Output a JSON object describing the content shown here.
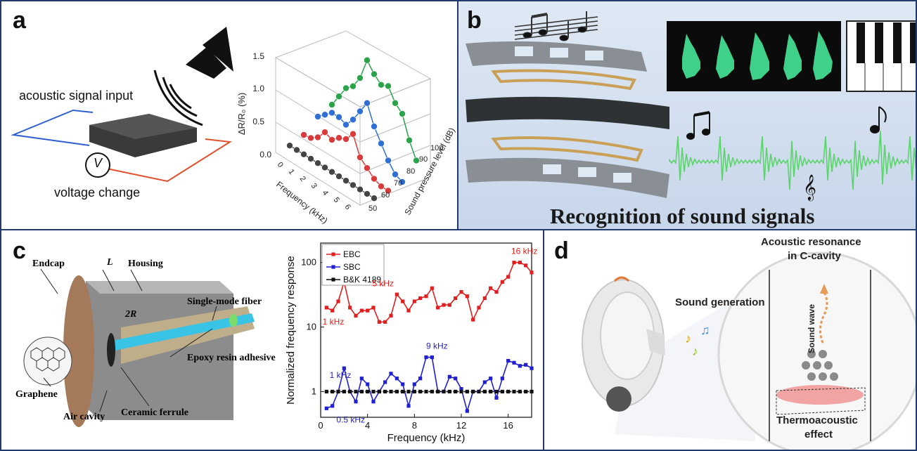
{
  "panels": {
    "a": {
      "label": "a",
      "acoustic_input": "acoustic signal input",
      "voltage_change": "voltage change",
      "meter_symbol": "V",
      "chart_ylabel": "ΔR/R₀ (%)",
      "chart_xlabel": "Frequency (kHz)",
      "chart_zlabel": "Sound pressure level (dB)",
      "y_ticks": [
        "0.0",
        "0.5",
        "1.0",
        "1.5"
      ],
      "x_ticks": [
        "0",
        "1",
        "2",
        "3",
        "4",
        "5",
        "6"
      ],
      "z_ticks": [
        "50",
        "60",
        "70",
        "80",
        "90",
        "100"
      ]
    },
    "b": {
      "label": "b",
      "caption": "Recognition of sound signals"
    },
    "c": {
      "label": "c",
      "endcap": "Endcap",
      "housing": "Housing",
      "length": "L",
      "radius": "2R",
      "fiber": "Single-mode fiber",
      "epoxy": "Epoxy resin adhesive",
      "graphene": "Graphene",
      "air_cavity": "Air cavity",
      "ferrule": "Ceramic ferrule"
    },
    "d": {
      "label": "d",
      "title_line1": "Acoustic resonance",
      "title_line2": "in C-cavity",
      "sound_generation": "Sound generation",
      "sound_wave": "Sound wave",
      "effect_line1": "Thermoacoustic",
      "effect_line2": "effect"
    }
  },
  "chart_data": [
    {
      "type": "line",
      "panel": "a",
      "xlabel": "Frequency (kHz)",
      "ylabel": "ΔR/R₀ (%)",
      "zlabel": "Sound pressure level (dB)",
      "ylim": [
        0,
        1.5
      ],
      "xlim": [
        0,
        6
      ],
      "zlim": [
        50,
        100
      ],
      "colors": [
        "#444444",
        "#d93a3a",
        "#2f6fd1",
        "#2aa34a"
      ],
      "series": [
        {
          "color": "#444444",
          "spl": 60,
          "x": [
            0,
            0.5,
            1,
            1.5,
            2,
            2.5,
            3,
            3.5,
            4,
            4.5,
            5,
            5.5,
            6
          ],
          "y": [
            0.02,
            0.02,
            0.02,
            0.02,
            0.02,
            0.02,
            0.02,
            0.02,
            0.02,
            0.02,
            0.02,
            0.02,
            0.02
          ]
        },
        {
          "color": "#d93a3a",
          "spl": 70,
          "x": [
            0,
            0.5,
            1,
            1.5,
            2,
            2.5,
            3,
            3.5,
            4,
            4.5,
            5,
            5.5,
            6
          ],
          "y": [
            0.1,
            0.12,
            0.2,
            0.35,
            0.3,
            0.4,
            0.45,
            0.6,
            0.3,
            0.2,
            0.1,
            0.05,
            0.05
          ]
        },
        {
          "color": "#2f6fd1",
          "spl": 80,
          "x": [
            0,
            0.5,
            1,
            1.5,
            2,
            2.5,
            3,
            3.5,
            4,
            4.5,
            5,
            5.5,
            6
          ],
          "y": [
            0.3,
            0.4,
            0.5,
            0.5,
            0.45,
            0.6,
            0.8,
            1.0,
            0.7,
            0.5,
            0.3,
            0.15,
            0.1
          ]
        },
        {
          "color": "#2aa34a",
          "spl": 90,
          "x": [
            0,
            0.5,
            1,
            1.5,
            2,
            2.5,
            3,
            3.5,
            4,
            4.5,
            5,
            5.5,
            6
          ],
          "y": [
            0.4,
            0.6,
            0.8,
            0.9,
            1.1,
            1.45,
            1.3,
            1.2,
            1.25,
            1.05,
            0.95,
            0.6,
            0.35
          ]
        }
      ]
    },
    {
      "type": "line",
      "panel": "c",
      "xlabel": "Frequency (kHz)",
      "ylabel": "Normalized frequency response",
      "xlim": [
        0,
        18
      ],
      "ylim": [
        0.4,
        200
      ],
      "yscale": "log",
      "x_ticks": [
        0,
        4,
        8,
        12,
        16
      ],
      "y_ticks": [
        1,
        10,
        100
      ],
      "legend": "top-left",
      "series": [
        {
          "name": "EBC",
          "color": "#e02020",
          "marker": "square",
          "x": [
            0.5,
            1,
            1.5,
            2,
            2.5,
            3,
            3.5,
            4,
            4.5,
            5,
            5.5,
            6,
            6.5,
            7,
            7.5,
            8,
            8.5,
            9,
            9.5,
            10,
            10.5,
            11,
            11.5,
            12,
            12.5,
            13,
            13.5,
            14,
            14.5,
            15,
            15.5,
            16,
            16.5,
            17,
            17.5,
            18
          ],
          "y": [
            20,
            18,
            25,
            50,
            20,
            15,
            18,
            18,
            20,
            12,
            12,
            15,
            32,
            25,
            18,
            25,
            28,
            30,
            40,
            20,
            22,
            22,
            28,
            35,
            30,
            13,
            20,
            28,
            40,
            35,
            50,
            60,
            100,
            100,
            90,
            70
          ]
        },
        {
          "name": "SBC",
          "color": "#2020d0",
          "marker": "square",
          "x": [
            0.5,
            1,
            1.5,
            2,
            2.5,
            3,
            3.5,
            4,
            4.5,
            5,
            5.5,
            6,
            6.5,
            7,
            7.5,
            8,
            8.5,
            9,
            9.5,
            10,
            10.5,
            11,
            11.5,
            12,
            12.5,
            13,
            13.5,
            14,
            14.5,
            15,
            15.5,
            16,
            16.5,
            17,
            17.5,
            18
          ],
          "y": [
            0.55,
            0.6,
            1.0,
            2.3,
            1.0,
            0.7,
            1.6,
            1.3,
            0.7,
            1.0,
            1.4,
            1.9,
            1.6,
            1.3,
            0.6,
            1.3,
            1.6,
            3.4,
            3.4,
            1.0,
            1.0,
            1.7,
            1.6,
            1.1,
            0.5,
            1.0,
            1.0,
            1.4,
            1.6,
            0.8,
            1.6,
            3.0,
            2.8,
            2.5,
            2.6,
            2.3
          ]
        },
        {
          "name": "B&K 4189",
          "color": "#111111",
          "marker": "square",
          "x": [
            0.5,
            1,
            1.5,
            2,
            2.5,
            3,
            3.5,
            4,
            4.5,
            5,
            5.5,
            6,
            6.5,
            7,
            7.5,
            8,
            8.5,
            9,
            9.5,
            10,
            10.5,
            11,
            11.5,
            12,
            12.5,
            13,
            13.5,
            14,
            14.5,
            15,
            15.5,
            16,
            16.5,
            17,
            17.5,
            18
          ],
          "y": [
            1,
            1,
            1,
            1,
            1,
            1,
            1,
            1,
            1,
            1,
            1,
            1,
            1,
            1,
            1,
            1,
            1,
            1,
            1,
            1,
            1,
            1,
            1,
            1,
            1,
            1,
            1,
            1,
            1,
            1,
            1,
            1,
            1,
            1,
            1,
            1
          ]
        }
      ],
      "annotations": [
        {
          "text": "16 kHz",
          "x": 16.5,
          "y": 100,
          "color": "#e02020"
        },
        {
          "text": "5 kHz",
          "x": 5,
          "y": 30,
          "color": "#e02020"
        },
        {
          "text": "1 kHz",
          "x": 1,
          "y": 18,
          "color": "#e02020"
        },
        {
          "text": "9 kHz",
          "x": 9,
          "y": 3.4,
          "color": "#2020d0"
        },
        {
          "text": "1 kHz",
          "x": 1,
          "y": 0.6,
          "color": "#2020d0"
        },
        {
          "text": "0.5 kHz",
          "x": 0.5,
          "y": 0.55,
          "color": "#2020d0"
        }
      ]
    }
  ]
}
